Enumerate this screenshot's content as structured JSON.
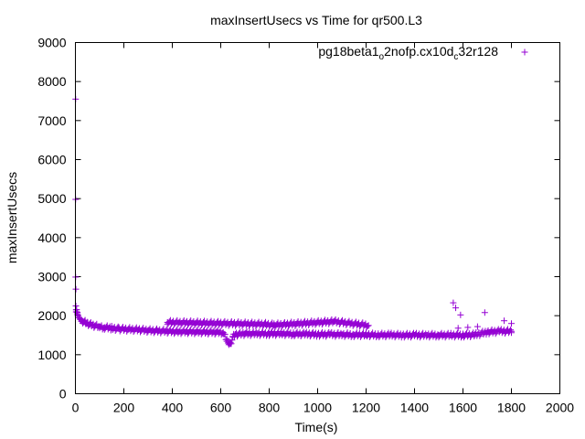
{
  "chart_data": {
    "type": "scatter",
    "title": "maxInsertUsecs vs Time for qr500.L3",
    "xlabel": "Time(s)",
    "ylabel": "maxInsertUsecs",
    "xlim": [
      0,
      2000
    ],
    "ylim": [
      0,
      9000
    ],
    "xticks": [
      "0",
      "200",
      "400",
      "600",
      "800",
      "1000",
      "1200",
      "1400",
      "1600",
      "1800",
      "2000"
    ],
    "yticks": [
      "0",
      "1000",
      "2000",
      "3000",
      "4000",
      "5000",
      "6000",
      "7000",
      "8000",
      "9000"
    ],
    "grid": false,
    "legend_position": "top-right",
    "legend": {
      "base1": "pg18beta1",
      "sub1": "o",
      "base2": "2nofp.cx10d",
      "sub2": "c",
      "base3": "32r128"
    },
    "marker": "plus",
    "color": "#9400d3",
    "series": [
      {
        "points": [
          [
            1,
            7550
          ],
          [
            1,
            4980
          ],
          [
            1,
            2990
          ],
          [
            2,
            2680
          ],
          [
            2,
            2250
          ],
          [
            3,
            2150
          ],
          [
            5,
            2100
          ],
          [
            8,
            2050
          ],
          [
            10,
            2000
          ],
          [
            15,
            1950
          ],
          [
            20,
            1920
          ],
          [
            25,
            1890
          ],
          [
            30,
            1860
          ],
          [
            40,
            1830
          ],
          [
            50,
            1800
          ],
          [
            60,
            1780
          ],
          [
            70,
            1760
          ],
          [
            80,
            1740
          ],
          [
            100,
            1720
          ],
          [
            120,
            1700
          ],
          [
            150,
            1680
          ],
          [
            180,
            1660
          ],
          [
            220,
            1650
          ],
          [
            260,
            1640
          ],
          [
            300,
            1620
          ],
          [
            340,
            1610
          ],
          [
            380,
            1600
          ],
          [
            420,
            1590
          ],
          [
            460,
            1590
          ],
          [
            500,
            1585
          ],
          [
            540,
            1580
          ],
          [
            580,
            1575
          ],
          [
            610,
            1570
          ],
          [
            625,
            1400
          ],
          [
            630,
            1300
          ],
          [
            640,
            1280
          ],
          [
            650,
            1450
          ],
          [
            660,
            1520
          ],
          [
            700,
            1540
          ],
          [
            750,
            1540
          ],
          [
            800,
            1540
          ],
          [
            850,
            1540
          ],
          [
            900,
            1530
          ],
          [
            950,
            1530
          ],
          [
            1000,
            1520
          ],
          [
            1050,
            1520
          ],
          [
            1100,
            1515
          ],
          [
            1150,
            1510
          ],
          [
            1200,
            1510
          ],
          [
            1250,
            1505
          ],
          [
            1300,
            1505
          ],
          [
            1350,
            1500
          ],
          [
            1400,
            1500
          ],
          [
            1450,
            1500
          ],
          [
            1500,
            1500
          ],
          [
            1550,
            1500
          ],
          [
            1600,
            1500
          ],
          [
            1650,
            1510
          ],
          [
            1700,
            1580
          ],
          [
            1750,
            1600
          ],
          [
            1800,
            1600
          ],
          [
            380,
            1830
          ],
          [
            785,
            1780
          ],
          [
            820,
            1760
          ],
          [
            1070,
            1850
          ],
          [
            1210,
            1750
          ],
          [
            1560,
            2330
          ],
          [
            1570,
            2200
          ],
          [
            1590,
            2020
          ],
          [
            1690,
            2080
          ],
          [
            1770,
            1870
          ],
          [
            1800,
            1800
          ],
          [
            1580,
            1680
          ],
          [
            1620,
            1700
          ],
          [
            1660,
            1720
          ]
        ]
      }
    ]
  }
}
